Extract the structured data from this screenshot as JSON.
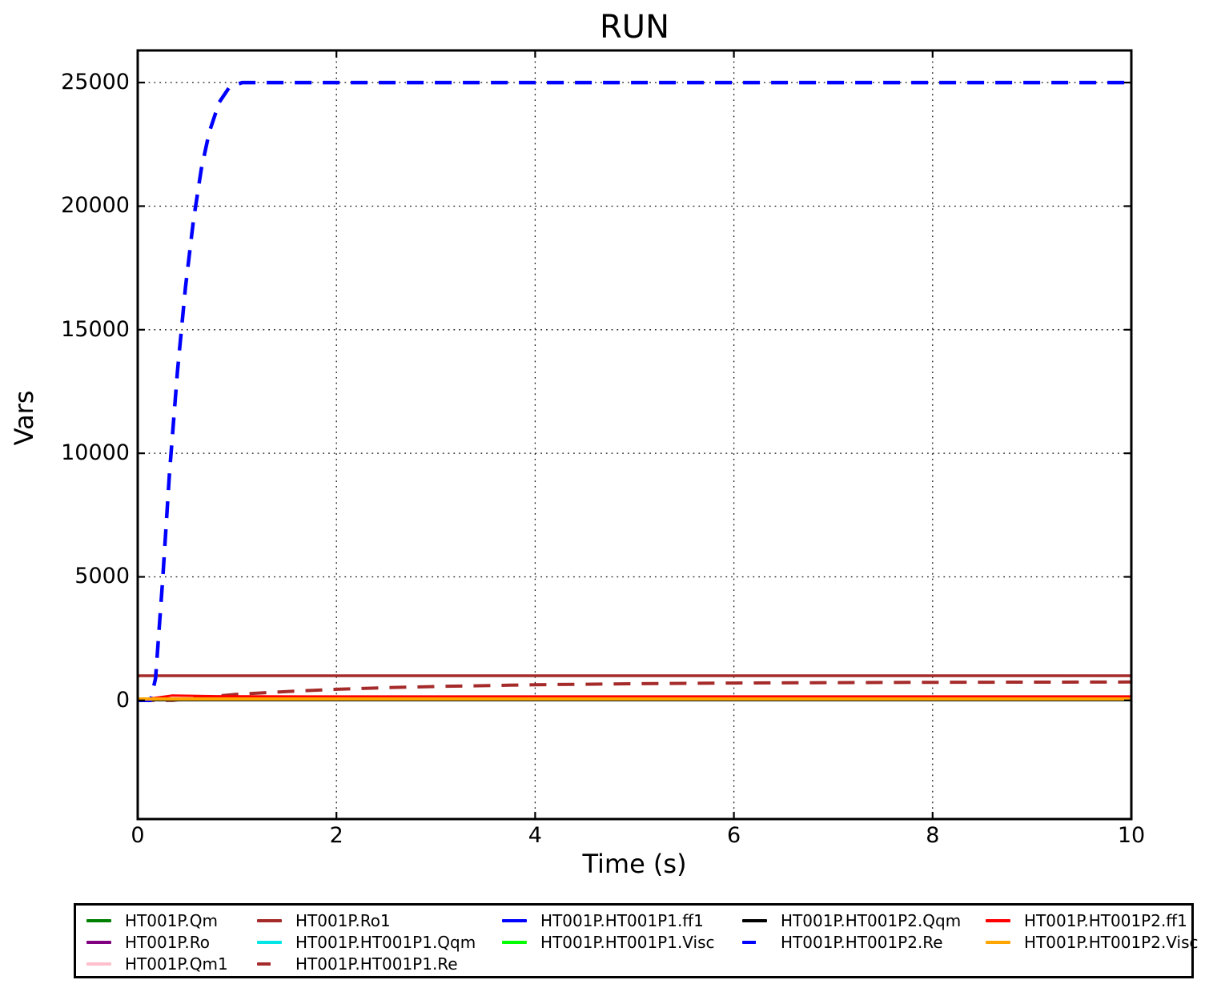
{
  "chart_data": {
    "type": "line",
    "title": "RUN",
    "xlabel": "Time (s)",
    "ylabel": "Vars",
    "xlim": [
      0,
      10
    ],
    "ylim": [
      -4800,
      26300
    ],
    "x_ticks": [
      0,
      2,
      4,
      6,
      8,
      10
    ],
    "y_ticks": [
      0,
      5000,
      10000,
      15000,
      20000,
      25000
    ],
    "grid": true,
    "grid_style": "dotted",
    "legend_position": "bottom",
    "legend_columns": [
      [
        0,
        1,
        2
      ],
      [
        3,
        4,
        5
      ],
      [
        6,
        7
      ],
      [
        8,
        9
      ],
      [
        10,
        11
      ]
    ],
    "series": [
      {
        "name": "HT001P.Qm",
        "color": "#008000",
        "line_style": "solid",
        "width": 2,
        "x": [
          0,
          10
        ],
        "y": [
          0,
          0
        ]
      },
      {
        "name": "HT001P.Ro",
        "color": "#800080",
        "line_style": "solid",
        "width": 2.5,
        "x": [
          0,
          10
        ],
        "y": [
          1000,
          1000
        ]
      },
      {
        "name": "HT001P.Qm1",
        "color": "#FFC0CB",
        "line_style": "solid",
        "width": 2,
        "x": [
          0,
          10
        ],
        "y": [
          0,
          0
        ]
      },
      {
        "name": "HT001P.Ro1",
        "color": "#A52A2A",
        "line_style": "solid",
        "width": 3.5,
        "x": [
          0,
          10
        ],
        "y": [
          1000,
          1000
        ]
      },
      {
        "name": "HT001P.HT001P1.Qqm",
        "color": "#00E5E5",
        "line_style": "solid",
        "width": 2,
        "x": [
          0,
          10
        ],
        "y": [
          0,
          0
        ]
      },
      {
        "name": "HT001P.HT001P1.Re",
        "color": "#A52A2A",
        "line_style": "dashed",
        "width": 4,
        "x": [
          0,
          0.35,
          0.6,
          1,
          1.5,
          2,
          2.5,
          3,
          4,
          5,
          6,
          7,
          8,
          9,
          10
        ],
        "y": [
          0,
          0,
          100,
          250,
          360,
          450,
          515,
          565,
          635,
          675,
          703,
          720,
          732,
          740,
          745
        ]
      },
      {
        "name": "HT001P.HT001P1.ff1",
        "color": "#0000FF",
        "line_style": "solid",
        "width": 2,
        "x": [
          0,
          10
        ],
        "y": [
          0,
          0
        ]
      },
      {
        "name": "HT001P.HT001P1.Visc",
        "color": "#00FF00",
        "line_style": "solid",
        "width": 2,
        "x": [
          0,
          10
        ],
        "y": [
          0,
          0
        ]
      },
      {
        "name": "HT001P.HT001P2.Qqm",
        "color": "#000000",
        "line_style": "solid",
        "width": 2.2,
        "x": [
          0,
          10
        ],
        "y": [
          0,
          0
        ]
      },
      {
        "name": "HT001P.HT001P2.Re",
        "color": "#0000FF",
        "line_style": "dashed",
        "width": 4.5,
        "x": [
          0,
          0.13,
          0.18,
          0.25,
          0.32,
          0.4,
          0.48,
          0.56,
          0.64,
          0.72,
          0.82,
          0.92,
          1.05,
          1.3,
          2,
          4,
          6,
          8,
          10
        ],
        "y": [
          0,
          0,
          900,
          4800,
          9200,
          13300,
          16700,
          19400,
          21500,
          23000,
          24200,
          24800,
          25000,
          25000,
          25000,
          25000,
          25000,
          25000,
          25000
        ]
      },
      {
        "name": "HT001P.HT001P2.ff1",
        "color": "#FF0000",
        "line_style": "solid",
        "width": 3,
        "x": [
          0,
          0.15,
          0.35,
          0.55,
          0.8,
          1.2,
          2,
          10
        ],
        "y": [
          10,
          90,
          200,
          185,
          170,
          162,
          160,
          160
        ]
      },
      {
        "name": "HT001P.HT001P2.Visc",
        "color": "#FFA500",
        "line_style": "solid",
        "width": 4,
        "x": [
          0,
          10
        ],
        "y": [
          60,
          60
        ]
      }
    ]
  },
  "colors": {
    "background": "#ffffff",
    "frame": "#000000",
    "grid": "#111111",
    "text": "#000000"
  }
}
